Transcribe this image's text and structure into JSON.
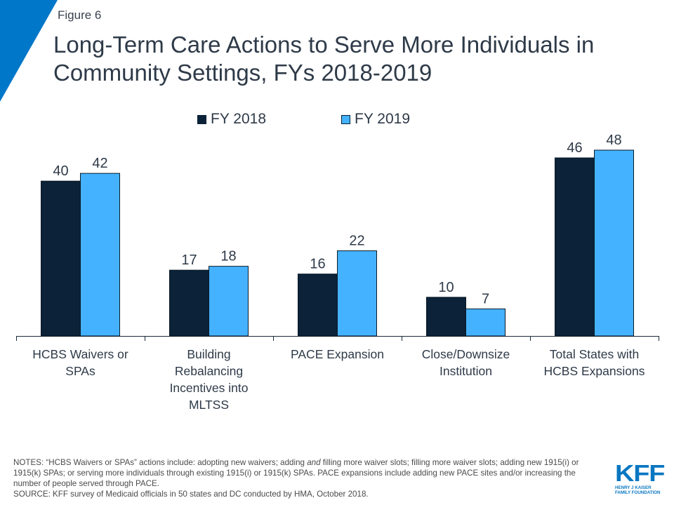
{
  "header": {
    "figure_label": "Figure 6",
    "title": "Long-Term Care Actions to Serve More Individuals in Community Settings, FYs 2018-2019"
  },
  "colors": {
    "accent_corner": "#0077c8",
    "fy2018": "#0b2238",
    "fy2019": "#44b2ff"
  },
  "chart_data": {
    "type": "bar",
    "title": "Long-Term Care Actions to Serve More Individuals in Community Settings, FYs 2018-2019",
    "xlabel": "",
    "ylabel": "",
    "ylim": [
      0,
      50
    ],
    "grid": false,
    "legend_position": "top-center",
    "categories": [
      [
        "HCBS Waivers or",
        "SPAs"
      ],
      [
        "Building",
        "Rebalancing",
        "Incentives into",
        "MLTSS"
      ],
      [
        "PACE Expansion"
      ],
      [
        "Close/Downsize",
        "Institution"
      ],
      [
        "Total States with",
        "HCBS Expansions"
      ]
    ],
    "series": [
      {
        "name": "FY 2018",
        "color": "#0b2238",
        "values": [
          40,
          17,
          16,
          10,
          46
        ]
      },
      {
        "name": "FY 2019",
        "color": "#44b2ff",
        "values": [
          42,
          18,
          22,
          7,
          48
        ]
      }
    ]
  },
  "footer": {
    "notes_prefix": "NOTES: “HCBS Waivers or SPAs” actions include: adopting new waivers;  adding ",
    "notes_italic": "and",
    "notes_rest": " filling more waiver slots; filling more waiver slots; adding new 1915(i) or 1915(k) SPAs; or serving more individuals through existing 1915(i) or 1915(k) SPAs. PACE expansions include adding new PACE sites and/or increasing the number of people served through PACE.",
    "source": "SOURCE: KFF survey of Medicaid officials in 50 states and DC conducted by HMA, October 2018."
  },
  "logo": {
    "mark": "KFF",
    "line1": "HENRY J KAISER",
    "line2": "FAMILY FOUNDATION"
  }
}
